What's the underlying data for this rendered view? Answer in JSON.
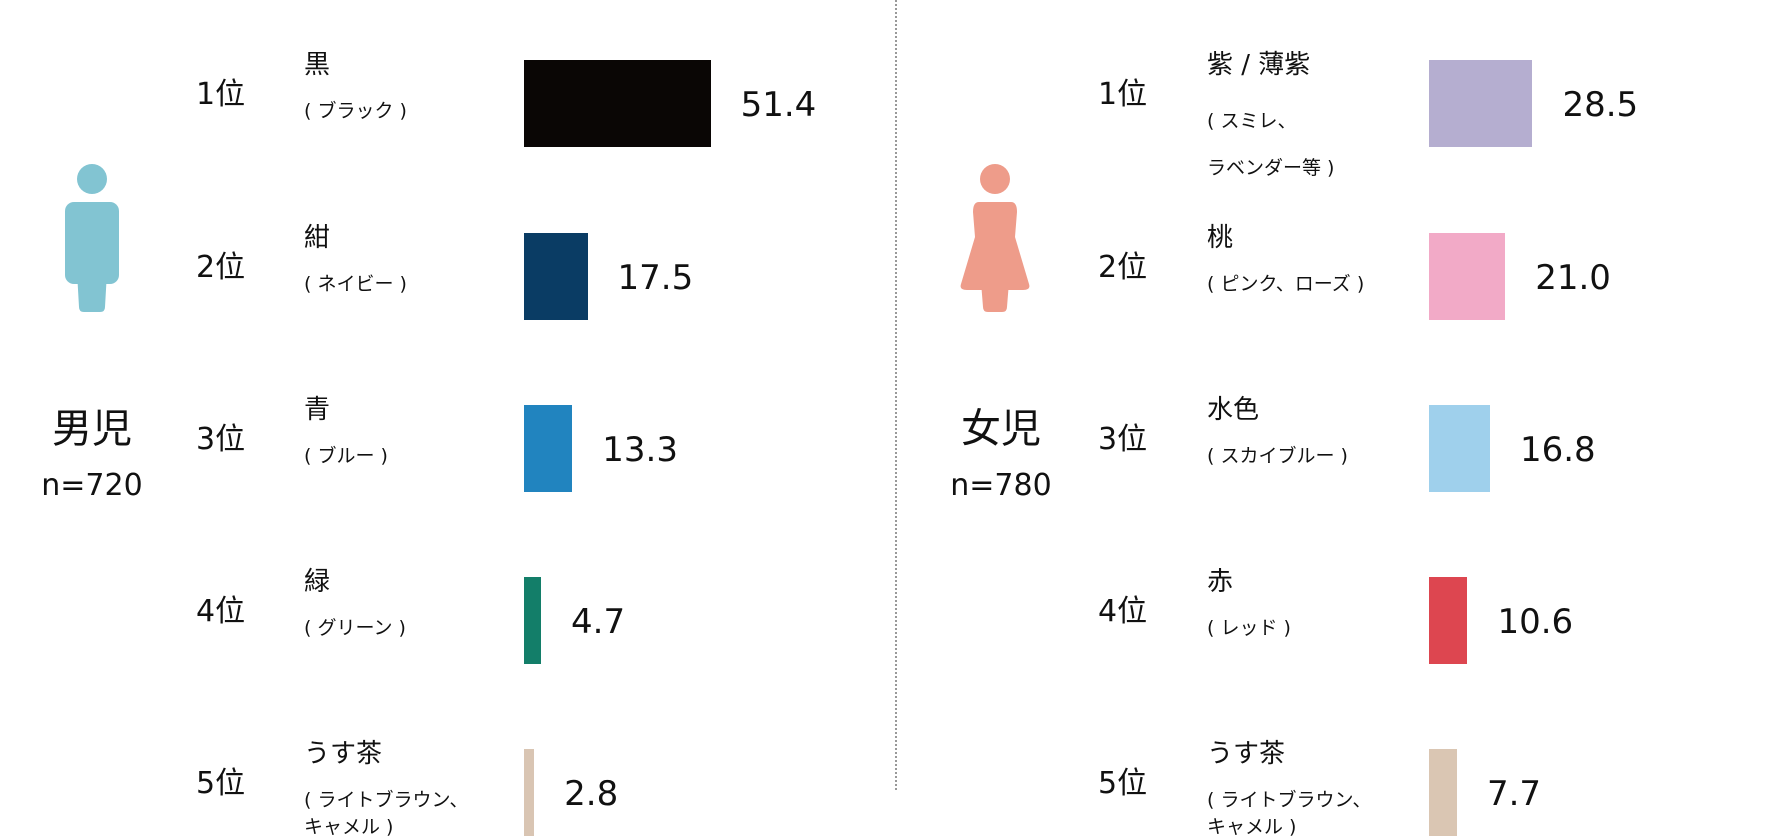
{
  "chart_data": [
    {
      "type": "bar",
      "orientation": "horizontal",
      "group": "男児",
      "n_label": "n=720",
      "figure_icon": "boy-icon",
      "figure_color": "#82c4d2",
      "ranks": [
        "1位",
        "2位",
        "3位",
        "4位",
        "5位"
      ],
      "categories": [
        "黒",
        "紺",
        "青",
        "緑",
        "うす茶"
      ],
      "subtitles": [
        "( ブラック )",
        "( ネイビー )",
        "( ブルー )",
        "( グリーン )",
        "( ライトブラウン、\nキャメル )"
      ],
      "values": [
        51.4,
        17.5,
        13.3,
        4.7,
        2.8
      ],
      "value_labels": [
        "51.4",
        "17.5",
        "13.3",
        "4.7",
        "2.8"
      ],
      "colors": [
        "#0a0605",
        "#0a3c64",
        "#2184bf",
        "#137e69",
        "#d9c5b3"
      ]
    },
    {
      "type": "bar",
      "orientation": "horizontal",
      "group": "女児",
      "n_label": "n=780",
      "figure_icon": "girl-icon",
      "figure_color": "#ee9c8a",
      "ranks": [
        "1位",
        "2位",
        "3位",
        "4位",
        "5位"
      ],
      "categories": [
        "紫 / 薄紫",
        "桃",
        "水色",
        "赤",
        "うす茶"
      ],
      "subtitles": [
        "( スミレ、\nラベンダー等 )",
        "( ピンク、ローズ )",
        "( スカイブルー )",
        "( レッド )",
        "( ライトブラウン、\nキャメル )"
      ],
      "values": [
        28.5,
        21.0,
        16.8,
        10.6,
        7.7
      ],
      "value_labels": [
        "28.5",
        "21.0",
        "16.8",
        "10.6",
        "7.7"
      ],
      "colors": [
        "#b5aed0",
        "#f2aac7",
        "#9fd0ec",
        "#dd4650",
        "#dac6b3"
      ]
    }
  ]
}
